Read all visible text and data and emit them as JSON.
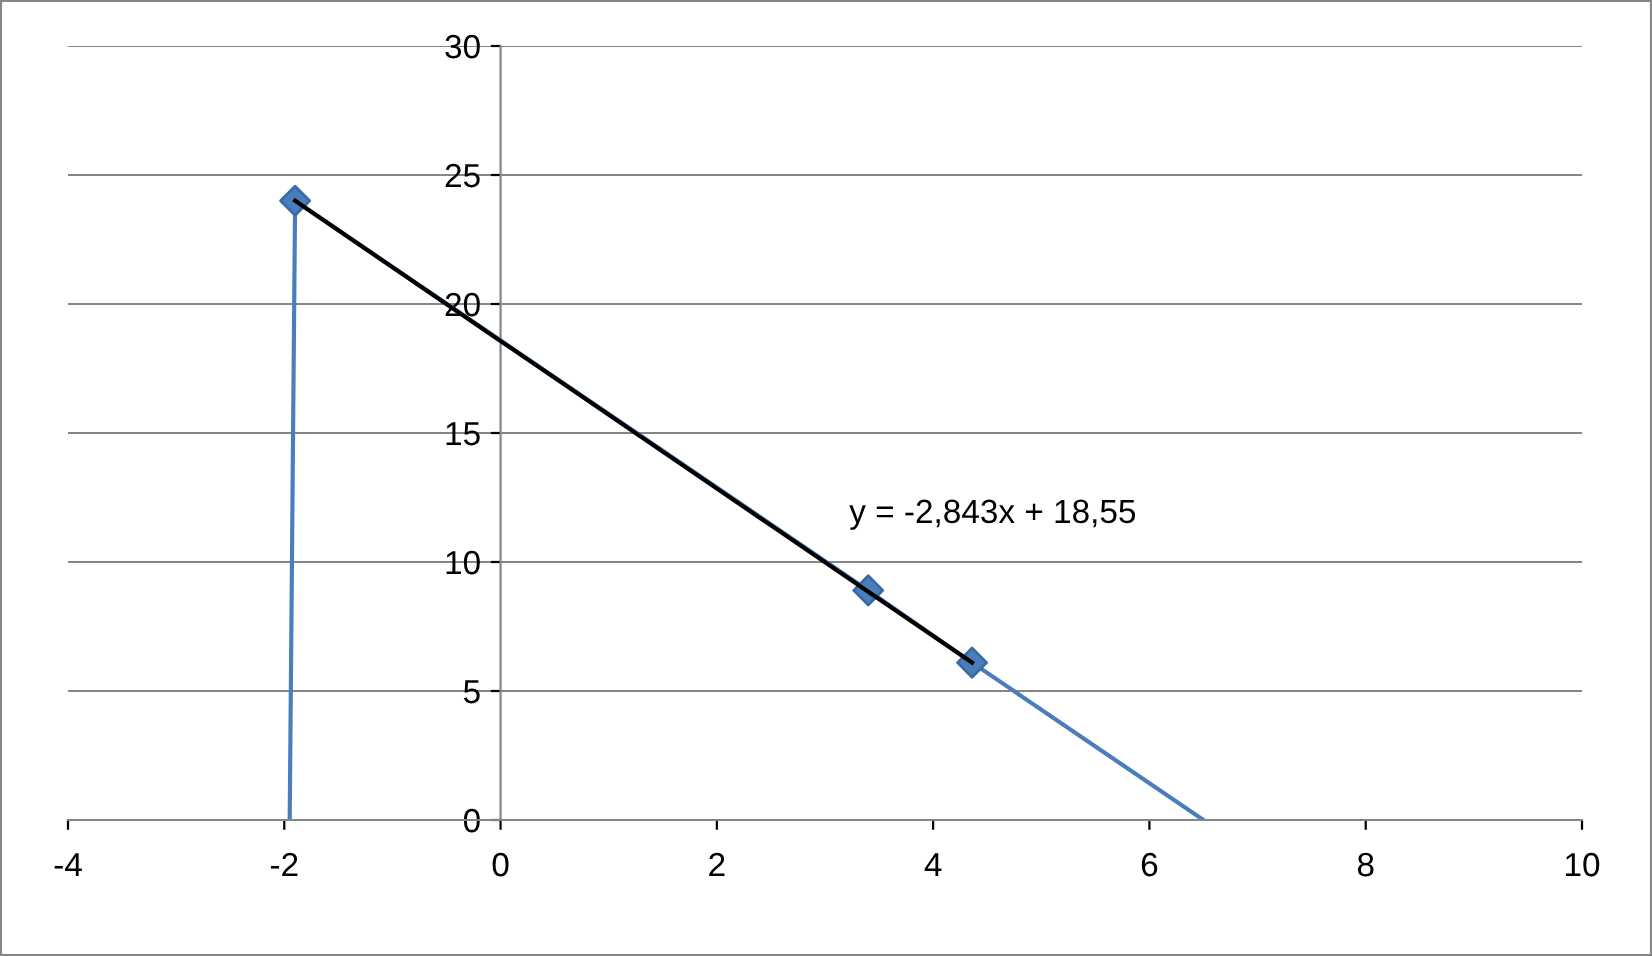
{
  "chart_data": {
    "type": "scatter",
    "xlim": [
      -4,
      10
    ],
    "ylim": [
      0,
      30
    ],
    "xticks": [
      -4,
      -2,
      0,
      2,
      4,
      6,
      8,
      10
    ],
    "yticks": [
      0,
      5,
      10,
      15,
      20,
      25,
      30
    ],
    "grid": "y",
    "legend": false,
    "series": [
      {
        "type": "line",
        "color": "#4a7ebb",
        "marker": "none",
        "x": [
          -1.95,
          -1.9,
          3.4,
          4.36,
          6.5
        ],
        "values": [
          0,
          24,
          8.9,
          6.1,
          0
        ]
      },
      {
        "color": "#4a7ebb",
        "marker": "diamond",
        "x": [
          -1.9,
          3.4,
          4.36
        ],
        "values": [
          24,
          8.9,
          6.1
        ]
      },
      {
        "type": "line",
        "color": "#000000",
        "marker": "none",
        "x": [
          -1.9,
          4.36
        ],
        "values": [
          24,
          6.1
        ]
      }
    ],
    "annotations": [
      "y = -2,843x + 18,55"
    ]
  }
}
